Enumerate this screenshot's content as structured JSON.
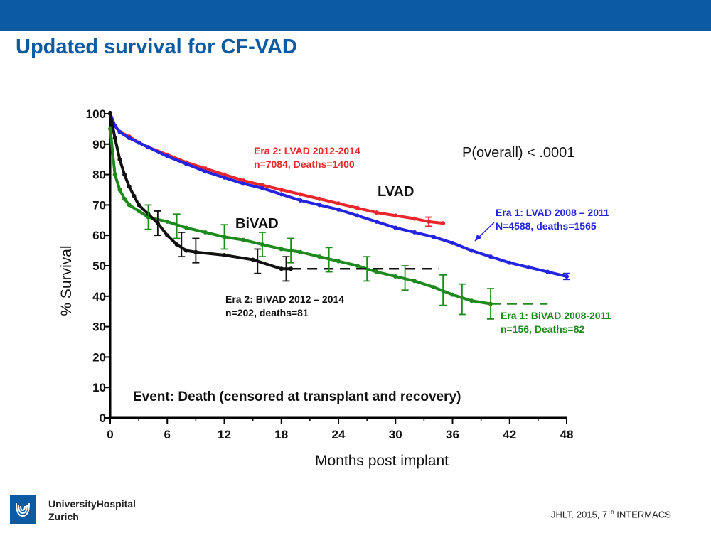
{
  "slide": {
    "title": "Updated survival for CF-VAD",
    "logo": {
      "line1": "UniversityHospital",
      "line2": "Zurich"
    },
    "citation": {
      "before": "JHLT. 2015, 7",
      "sup": "Th",
      "after": " INTERMACS"
    }
  },
  "colors": {
    "header_bar": "#0b5aa2",
    "title": "#0b5aa2",
    "red": "#e8262b",
    "blue": "#2323e0",
    "green": "#1e8a1e",
    "black": "#111111"
  },
  "chart_data": {
    "type": "line",
    "xlabel": "Months post implant",
    "ylabel": "% Survival",
    "xlim": [
      0,
      48
    ],
    "ylim": [
      0,
      100
    ],
    "xticks": [
      "0",
      "6",
      "12",
      "18",
      "24",
      "30",
      "36",
      "42",
      "48"
    ],
    "yticks": [
      "0",
      "10",
      "20",
      "30",
      "40",
      "50",
      "60",
      "70",
      "80",
      "90",
      "100"
    ],
    "grid": false,
    "annotations": {
      "p_value": "P(overall) < .0001",
      "event": "Event:  Death (censored at transplant and recovery)",
      "lvad_group": "LVAD",
      "bivad_group": "BiVAD"
    },
    "series": [
      {
        "name": "Era 2: LVAD 2012-2014",
        "label_lines": [
          "Era 2: LVAD 2012-2014",
          "n=7084, Deaths=1400"
        ],
        "color": "#e8262b",
        "x": [
          0,
          0.5,
          1,
          2,
          3,
          4,
          6,
          8,
          10,
          12,
          14,
          16,
          18,
          20,
          22,
          24,
          26,
          28,
          30,
          32,
          33.5,
          35
        ],
        "y": [
          100,
          96,
          94,
          92.5,
          90.5,
          89,
          86.5,
          84,
          82,
          80,
          78,
          76.5,
          75,
          73.5,
          72,
          70.5,
          69,
          67.5,
          66.5,
          65.5,
          64.5,
          64
        ]
      },
      {
        "name": "Era 1: LVAD 2008 – 2011",
        "label_lines": [
          "Era 1: LVAD 2008 – 2011",
          "N=4588, deaths=1565"
        ],
        "color": "#2323e0",
        "x": [
          0,
          0.5,
          1,
          2,
          3,
          4,
          6,
          8,
          10,
          12,
          14,
          16,
          18,
          20,
          22,
          24,
          26,
          28,
          30,
          32,
          34,
          36,
          38,
          40,
          42,
          44,
          46,
          48
        ],
        "y": [
          100,
          96,
          94,
          92,
          90.5,
          89,
          86,
          83.5,
          81,
          79,
          77,
          75.5,
          73.5,
          71.5,
          70,
          68.5,
          66.5,
          64.5,
          62.5,
          61,
          59.5,
          57.5,
          55,
          53,
          51,
          49.5,
          48,
          46.5
        ]
      },
      {
        "name": "Era 1: BiVAD 2008-2011",
        "label_lines": [
          "Era 1: BiVAD 2008-2011",
          "n=156, Deaths=82"
        ],
        "color": "#1e8a1e",
        "x": [
          0,
          0.5,
          1,
          1.5,
          2,
          3,
          4,
          6,
          8,
          10,
          12,
          14,
          16,
          18,
          20,
          22,
          24,
          26,
          28,
          30,
          32,
          34,
          36,
          38,
          40,
          42,
          44,
          46
        ],
        "y": [
          95,
          80,
          75,
          72,
          70,
          68,
          66,
          64.5,
          62.5,
          61,
          59.5,
          58.5,
          57,
          55.5,
          54.5,
          53,
          51.5,
          50,
          48,
          46.5,
          45,
          43,
          40.5,
          38.5,
          37.5,
          37.5,
          37.5,
          37.5
        ],
        "dashed_after": 40
      },
      {
        "name": "Era 2: BiVAD 2012 – 2014",
        "label_lines": [
          "Era 2: BiVAD 2012 – 2014",
          "n=202, deaths=81"
        ],
        "color": "#111111",
        "x": [
          0,
          0.5,
          1,
          1.5,
          2,
          2.5,
          3,
          4,
          5,
          6,
          7,
          8,
          9,
          12,
          15,
          18,
          19,
          22,
          25,
          28,
          31,
          34.5
        ],
        "y": [
          100,
          92,
          85,
          80,
          76,
          73,
          70,
          67,
          64,
          60,
          57,
          55,
          54.5,
          53.5,
          52,
          49,
          49,
          49,
          49,
          49,
          49,
          49
        ],
        "dashed_after": 19
      }
    ],
    "error_bars": [
      {
        "series": 2,
        "x": 4,
        "y": 66,
        "err": 4
      },
      {
        "series": 2,
        "x": 7,
        "y": 63,
        "err": 4
      },
      {
        "series": 2,
        "x": 12,
        "y": 59.5,
        "err": 4
      },
      {
        "series": 2,
        "x": 16,
        "y": 57,
        "err": 4
      },
      {
        "series": 2,
        "x": 19,
        "y": 55,
        "err": 4
      },
      {
        "series": 2,
        "x": 23,
        "y": 52,
        "err": 4
      },
      {
        "series": 2,
        "x": 27,
        "y": 49,
        "err": 4
      },
      {
        "series": 2,
        "x": 31,
        "y": 46,
        "err": 4
      },
      {
        "series": 2,
        "x": 35,
        "y": 42,
        "err": 5
      },
      {
        "series": 2,
        "x": 37,
        "y": 39,
        "err": 5
      },
      {
        "series": 2,
        "x": 40,
        "y": 37.5,
        "err": 5
      },
      {
        "series": 3,
        "x": 5,
        "y": 64,
        "err": 4
      },
      {
        "series": 3,
        "x": 7.5,
        "y": 57,
        "err": 4
      },
      {
        "series": 3,
        "x": 9,
        "y": 55,
        "err": 4
      },
      {
        "series": 3,
        "x": 15.5,
        "y": 51.5,
        "err": 4
      },
      {
        "series": 3,
        "x": 18.5,
        "y": 49,
        "err": 4
      },
      {
        "series": 0,
        "x": 33.5,
        "y": 64.5,
        "err": 1.5
      },
      {
        "series": 1,
        "x": 48,
        "y": 46.5,
        "err": 1
      }
    ]
  }
}
